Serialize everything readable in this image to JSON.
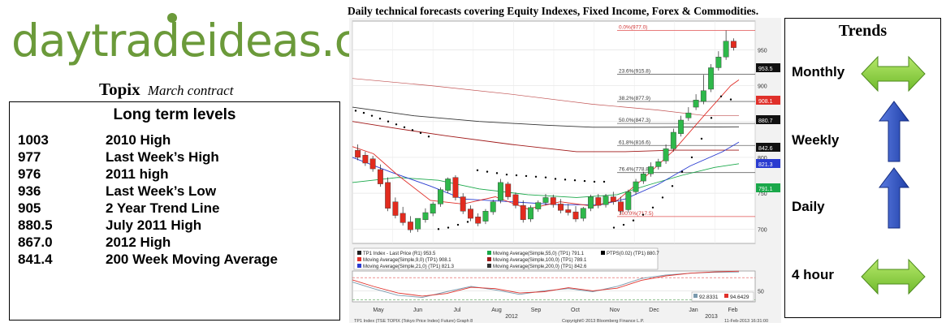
{
  "logo": {
    "text": "daytradeideas.com"
  },
  "header": "Daily technical forecasts covering Equity Indexes, Fixed Income, Forex & Commodities.",
  "instrument": {
    "name": "Topix",
    "contract": "March contract"
  },
  "levels": {
    "title": "Long term levels",
    "rows": [
      {
        "value": "1003",
        "label": "2010 High"
      },
      {
        "value": "977",
        "label": "Last Week’s High"
      },
      {
        "value": "976",
        "label": "2011 high"
      },
      {
        "value": "936",
        "label": "Last Week’s Low"
      },
      {
        "value": "905",
        "label": "2 Year Trend Line"
      },
      {
        "value": "880.5",
        "label": "July 2011 High"
      },
      {
        "value": "867.0",
        "label": "2012 High"
      },
      {
        "value": "841.4",
        "label": "200 Week Moving Average"
      }
    ]
  },
  "trends": {
    "title": "Trends",
    "items": [
      {
        "label": "Monthly",
        "icon": "double-arrow-horizontal",
        "direction": "sideways",
        "color": "#6fba2c"
      },
      {
        "label": "Weekly",
        "icon": "arrow-up",
        "direction": "up",
        "color": "#1f3fa8"
      },
      {
        "label": "Daily",
        "icon": "arrow-up",
        "direction": "up",
        "color": "#1f3fa8"
      },
      {
        "label": "4 hour",
        "icon": "double-arrow-horizontal",
        "direction": "sideways",
        "color": "#6fba2c"
      }
    ]
  },
  "chart_data": {
    "type": "candlestick",
    "ylim": [
      680,
      990
    ],
    "yticks": [
      700,
      750,
      800,
      850,
      900,
      950
    ],
    "x_labels": [
      "May",
      "Jun",
      "Jul",
      "Aug",
      "Sep",
      "Oct",
      "Nov",
      "Dec",
      "Jan",
      "Feb"
    ],
    "year_labels": [
      "2012",
      "2013"
    ],
    "candles": [
      {
        "o": 810,
        "h": 818,
        "c": 800
      },
      {
        "o": 803,
        "h": 808,
        "c": 792
      },
      {
        "o": 798,
        "h": 802,
        "c": 784
      },
      {
        "o": 783,
        "h": 790,
        "c": 763
      },
      {
        "o": 765,
        "h": 772,
        "c": 729
      },
      {
        "o": 738,
        "h": 744,
        "c": 719
      },
      {
        "o": 722,
        "h": 731,
        "c": 709
      },
      {
        "o": 710,
        "h": 718,
        "c": 699
      },
      {
        "o": 700,
        "h": 710,
        "c": 715
      },
      {
        "o": 713,
        "h": 729,
        "c": 723
      },
      {
        "o": 722,
        "h": 738,
        "c": 735
      },
      {
        "o": 735,
        "h": 758,
        "c": 755
      },
      {
        "o": 754,
        "h": 772,
        "c": 770
      },
      {
        "o": 772,
        "h": 775,
        "c": 744
      },
      {
        "o": 745,
        "h": 750,
        "c": 725
      },
      {
        "o": 728,
        "h": 733,
        "c": 715
      },
      {
        "o": 717,
        "h": 722,
        "c": 708
      },
      {
        "o": 711,
        "h": 728,
        "c": 725
      },
      {
        "o": 724,
        "h": 741,
        "c": 738
      },
      {
        "o": 740,
        "h": 770,
        "c": 765
      },
      {
        "o": 763,
        "h": 766,
        "c": 745
      },
      {
        "o": 748,
        "h": 751,
        "c": 733
      },
      {
        "o": 733,
        "h": 740,
        "c": 713
      },
      {
        "o": 714,
        "h": 733,
        "c": 730
      },
      {
        "o": 728,
        "h": 740,
        "c": 737
      },
      {
        "o": 737,
        "h": 749,
        "c": 744
      },
      {
        "o": 744,
        "h": 748,
        "c": 734
      },
      {
        "o": 735,
        "h": 742,
        "c": 726
      },
      {
        "o": 727,
        "h": 735,
        "c": 723
      },
      {
        "o": 724,
        "h": 732,
        "c": 714
      },
      {
        "o": 715,
        "h": 731,
        "c": 729
      },
      {
        "o": 729,
        "h": 748,
        "c": 745
      },
      {
        "o": 744,
        "h": 749,
        "c": 733
      },
      {
        "o": 734,
        "h": 749,
        "c": 746
      },
      {
        "o": 745,
        "h": 752,
        "c": 738
      },
      {
        "o": 738,
        "h": 745,
        "c": 725
      },
      {
        "o": 727,
        "h": 755,
        "c": 752
      },
      {
        "o": 752,
        "h": 770,
        "c": 766
      },
      {
        "o": 767,
        "h": 780,
        "c": 777
      },
      {
        "o": 777,
        "h": 793,
        "c": 787
      },
      {
        "o": 787,
        "h": 798,
        "c": 794
      },
      {
        "o": 795,
        "h": 818,
        "c": 812
      },
      {
        "o": 812,
        "h": 840,
        "c": 835
      },
      {
        "o": 833,
        "h": 858,
        "c": 852
      },
      {
        "o": 855,
        "h": 870,
        "c": 862
      },
      {
        "o": 870,
        "h": 888,
        "c": 880
      },
      {
        "o": 878,
        "h": 915,
        "c": 893
      },
      {
        "o": 895,
        "h": 930,
        "c": 925
      },
      {
        "o": 925,
        "h": 948,
        "c": 940
      },
      {
        "o": 940,
        "h": 977,
        "c": 962
      },
      {
        "o": 962,
        "h": 966,
        "c": 953
      }
    ],
    "fib_levels": [
      {
        "label": "0.0%(977.0)",
        "value": 977.0
      },
      {
        "label": "23.6%(915.8)",
        "value": 915.8
      },
      {
        "label": "38.2%(877.9)",
        "value": 877.9
      },
      {
        "label": "50.0%(847.3)",
        "value": 847.3
      },
      {
        "label": "61.8%(816.6)",
        "value": 816.6
      },
      {
        "label": "76.4%(778.8)",
        "value": 778.8
      },
      {
        "label": "100.0%(717.5)",
        "value": 717.5
      }
    ],
    "price_tags": [
      {
        "value": "953.5",
        "color": "#111111"
      },
      {
        "value": "908.1",
        "color": "#e0302a"
      },
      {
        "value": "880.7",
        "color": "#111111"
      },
      {
        "value": "842.6",
        "color": "#111111"
      },
      {
        "value": "821.3",
        "color": "#2a3bd0"
      },
      {
        "value": "791.1",
        "color": "#1aa84a"
      }
    ],
    "legend": [
      {
        "text": "TP1 Index - Last Price (R1)   953.5",
        "color": "#222222"
      },
      {
        "text": "Moving Average(Simple,9,0) (TP1) 908.1",
        "color": "#e0302a"
      },
      {
        "text": "Moving Average(Simple,21,0) (TP1) 821.3",
        "color": "#2a3bd0"
      },
      {
        "text": "Moving Average(Simple,55,0) (TP1) 791.1",
        "color": "#1aa84a"
      },
      {
        "text": "Moving Average(Simple,100,0) (TP1) 789.1",
        "color": "#a01818"
      },
      {
        "text": "Moving Average(Simple,200,0) (TP1) 842.6",
        "color": "#333333"
      },
      {
        "text": "PTPS(0.02) (TP1) 880.7",
        "color": "#000000"
      }
    ],
    "sub_panel": {
      "ylim": [
        25,
        95
      ],
      "ticks": [
        50
      ],
      "values": [
        {
          "label": "92.8331",
          "color": "#7a9aae"
        },
        {
          "label": "94.6429",
          "color": "#e0302a"
        }
      ]
    },
    "footer_left": "TP1 Index (TSE TOPIX (Tokyo Price Index) Future) Graph 8",
    "footer_mid": "Copyright© 2013 Bloomberg Finance L.P.",
    "footer_right": "11-Feb-2013 16:31:00"
  }
}
